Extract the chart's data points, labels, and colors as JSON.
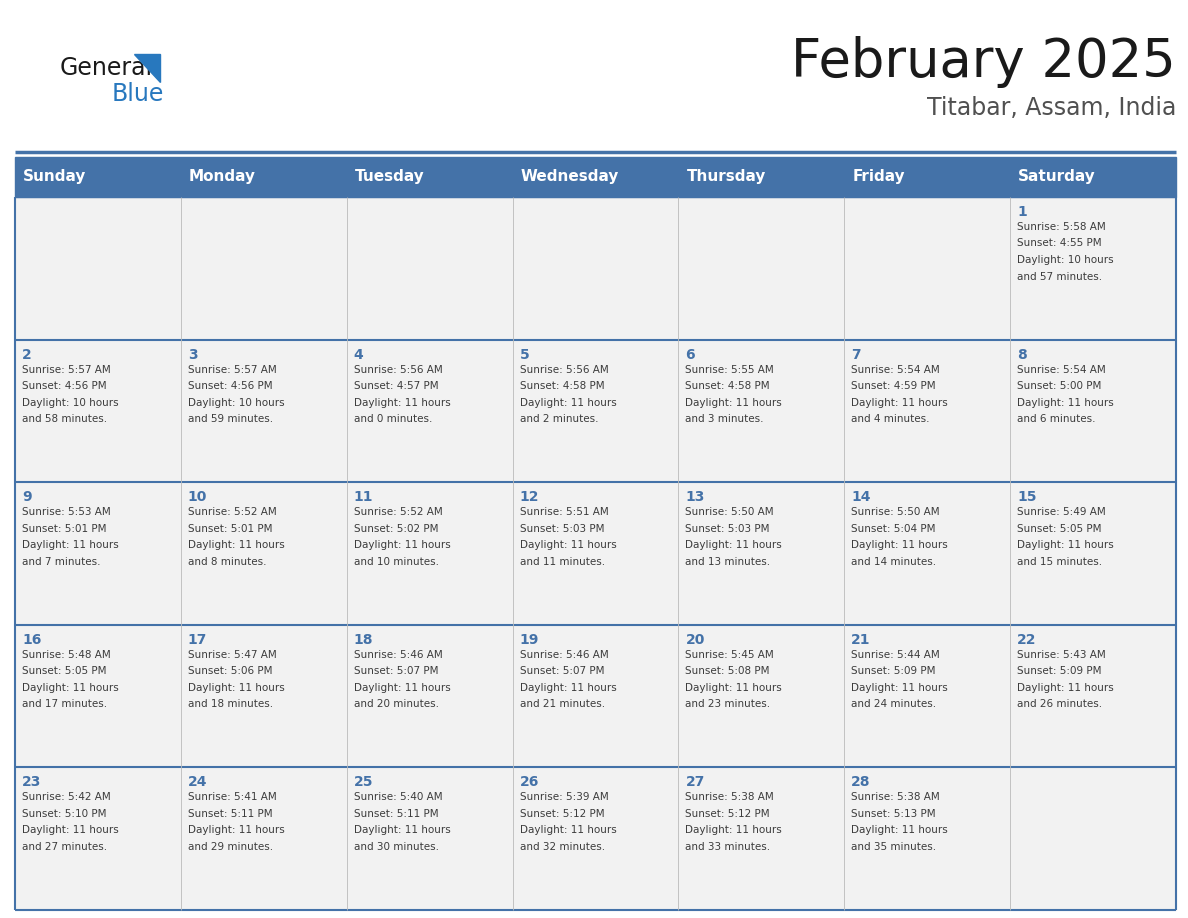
{
  "title": "February 2025",
  "subtitle": "Titabar, Assam, India",
  "days_of_week": [
    "Sunday",
    "Monday",
    "Tuesday",
    "Wednesday",
    "Thursday",
    "Friday",
    "Saturday"
  ],
  "header_bg_color": "#4472A8",
  "header_text_color": "#FFFFFF",
  "cell_bg_color": "#F2F2F2",
  "day_number_color": "#4472A8",
  "info_text_color": "#3C3C3C",
  "border_color": "#4472A8",
  "title_color": "#1a1a1a",
  "subtitle_color": "#505050",
  "logo_general_color": "#1a1a1a",
  "logo_blue_color": "#2878BE",
  "calendar_data": [
    {
      "day": 1,
      "col": 6,
      "row": 0,
      "sunrise": "5:58 AM",
      "sunset": "4:55 PM",
      "daylight_hrs": 10,
      "daylight_min": 57
    },
    {
      "day": 2,
      "col": 0,
      "row": 1,
      "sunrise": "5:57 AM",
      "sunset": "4:56 PM",
      "daylight_hrs": 10,
      "daylight_min": 58
    },
    {
      "day": 3,
      "col": 1,
      "row": 1,
      "sunrise": "5:57 AM",
      "sunset": "4:56 PM",
      "daylight_hrs": 10,
      "daylight_min": 59
    },
    {
      "day": 4,
      "col": 2,
      "row": 1,
      "sunrise": "5:56 AM",
      "sunset": "4:57 PM",
      "daylight_hrs": 11,
      "daylight_min": 0
    },
    {
      "day": 5,
      "col": 3,
      "row": 1,
      "sunrise": "5:56 AM",
      "sunset": "4:58 PM",
      "daylight_hrs": 11,
      "daylight_min": 2
    },
    {
      "day": 6,
      "col": 4,
      "row": 1,
      "sunrise": "5:55 AM",
      "sunset": "4:58 PM",
      "daylight_hrs": 11,
      "daylight_min": 3
    },
    {
      "day": 7,
      "col": 5,
      "row": 1,
      "sunrise": "5:54 AM",
      "sunset": "4:59 PM",
      "daylight_hrs": 11,
      "daylight_min": 4
    },
    {
      "day": 8,
      "col": 6,
      "row": 1,
      "sunrise": "5:54 AM",
      "sunset": "5:00 PM",
      "daylight_hrs": 11,
      "daylight_min": 6
    },
    {
      "day": 9,
      "col": 0,
      "row": 2,
      "sunrise": "5:53 AM",
      "sunset": "5:01 PM",
      "daylight_hrs": 11,
      "daylight_min": 7
    },
    {
      "day": 10,
      "col": 1,
      "row": 2,
      "sunrise": "5:52 AM",
      "sunset": "5:01 PM",
      "daylight_hrs": 11,
      "daylight_min": 8
    },
    {
      "day": 11,
      "col": 2,
      "row": 2,
      "sunrise": "5:52 AM",
      "sunset": "5:02 PM",
      "daylight_hrs": 11,
      "daylight_min": 10
    },
    {
      "day": 12,
      "col": 3,
      "row": 2,
      "sunrise": "5:51 AM",
      "sunset": "5:03 PM",
      "daylight_hrs": 11,
      "daylight_min": 11
    },
    {
      "day": 13,
      "col": 4,
      "row": 2,
      "sunrise": "5:50 AM",
      "sunset": "5:03 PM",
      "daylight_hrs": 11,
      "daylight_min": 13
    },
    {
      "day": 14,
      "col": 5,
      "row": 2,
      "sunrise": "5:50 AM",
      "sunset": "5:04 PM",
      "daylight_hrs": 11,
      "daylight_min": 14
    },
    {
      "day": 15,
      "col": 6,
      "row": 2,
      "sunrise": "5:49 AM",
      "sunset": "5:05 PM",
      "daylight_hrs": 11,
      "daylight_min": 15
    },
    {
      "day": 16,
      "col": 0,
      "row": 3,
      "sunrise": "5:48 AM",
      "sunset": "5:05 PM",
      "daylight_hrs": 11,
      "daylight_min": 17
    },
    {
      "day": 17,
      "col": 1,
      "row": 3,
      "sunrise": "5:47 AM",
      "sunset": "5:06 PM",
      "daylight_hrs": 11,
      "daylight_min": 18
    },
    {
      "day": 18,
      "col": 2,
      "row": 3,
      "sunrise": "5:46 AM",
      "sunset": "5:07 PM",
      "daylight_hrs": 11,
      "daylight_min": 20
    },
    {
      "day": 19,
      "col": 3,
      "row": 3,
      "sunrise": "5:46 AM",
      "sunset": "5:07 PM",
      "daylight_hrs": 11,
      "daylight_min": 21
    },
    {
      "day": 20,
      "col": 4,
      "row": 3,
      "sunrise": "5:45 AM",
      "sunset": "5:08 PM",
      "daylight_hrs": 11,
      "daylight_min": 23
    },
    {
      "day": 21,
      "col": 5,
      "row": 3,
      "sunrise": "5:44 AM",
      "sunset": "5:09 PM",
      "daylight_hrs": 11,
      "daylight_min": 24
    },
    {
      "day": 22,
      "col": 6,
      "row": 3,
      "sunrise": "5:43 AM",
      "sunset": "5:09 PM",
      "daylight_hrs": 11,
      "daylight_min": 26
    },
    {
      "day": 23,
      "col": 0,
      "row": 4,
      "sunrise": "5:42 AM",
      "sunset": "5:10 PM",
      "daylight_hrs": 11,
      "daylight_min": 27
    },
    {
      "day": 24,
      "col": 1,
      "row": 4,
      "sunrise": "5:41 AM",
      "sunset": "5:11 PM",
      "daylight_hrs": 11,
      "daylight_min": 29
    },
    {
      "day": 25,
      "col": 2,
      "row": 4,
      "sunrise": "5:40 AM",
      "sunset": "5:11 PM",
      "daylight_hrs": 11,
      "daylight_min": 30
    },
    {
      "day": 26,
      "col": 3,
      "row": 4,
      "sunrise": "5:39 AM",
      "sunset": "5:12 PM",
      "daylight_hrs": 11,
      "daylight_min": 32
    },
    {
      "day": 27,
      "col": 4,
      "row": 4,
      "sunrise": "5:38 AM",
      "sunset": "5:12 PM",
      "daylight_hrs": 11,
      "daylight_min": 33
    },
    {
      "day": 28,
      "col": 5,
      "row": 4,
      "sunrise": "5:38 AM",
      "sunset": "5:13 PM",
      "daylight_hrs": 11,
      "daylight_min": 35
    }
  ]
}
